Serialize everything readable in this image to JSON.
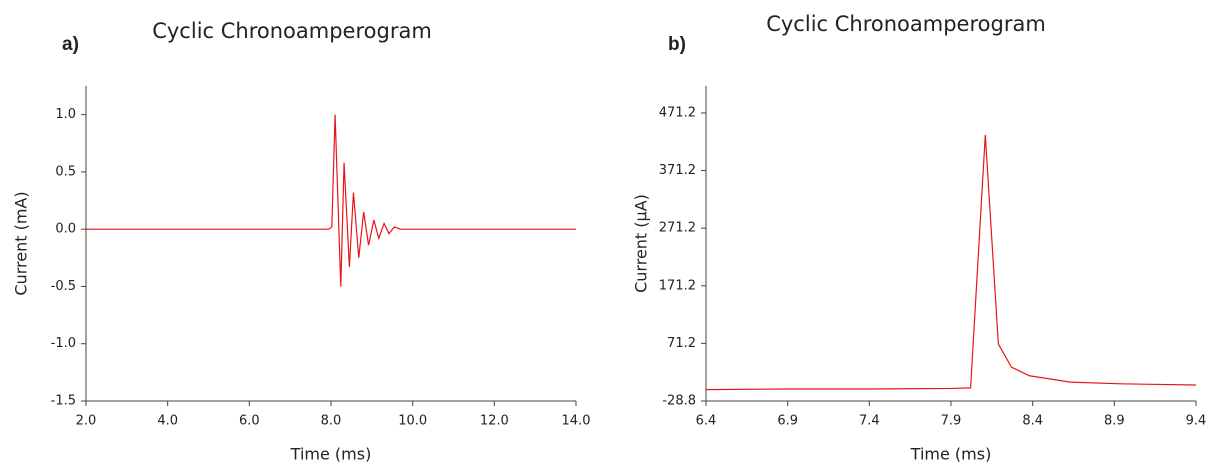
{
  "chart_data": [
    {
      "type": "line",
      "label": "a)",
      "title": "Cyclic Chronoamperogram",
      "xlabel": "Time (ms)",
      "ylabel": "Current (mA)",
      "color": "#e8141a",
      "x": [
        2.0,
        4.0,
        6.0,
        7.95,
        8.02,
        8.1,
        8.24,
        8.32,
        8.45,
        8.55,
        8.68,
        8.8,
        8.92,
        9.05,
        9.17,
        9.3,
        9.42,
        9.55,
        9.7,
        10.0,
        12.0,
        14.0
      ],
      "values": [
        0,
        0,
        0,
        0,
        0.02,
        1.0,
        -0.5,
        0.58,
        -0.33,
        0.32,
        -0.25,
        0.15,
        -0.14,
        0.08,
        -0.08,
        0.05,
        -0.04,
        0.02,
        0,
        0,
        0,
        0
      ],
      "xlim": [
        2.0,
        14.0
      ],
      "xticks": [
        {
          "value": 2,
          "label": "2.0"
        },
        {
          "value": 4,
          "label": "4.0"
        },
        {
          "value": 6,
          "label": "6.0"
        },
        {
          "value": 8,
          "label": "8.0"
        },
        {
          "value": 10,
          "label": "10.0"
        },
        {
          "value": 12,
          "label": "12.0"
        },
        {
          "value": 14,
          "label": "14.0"
        }
      ],
      "ylim": [
        -1.5,
        1.25
      ],
      "yticks": [
        {
          "value": 1,
          "label": "1.0"
        },
        0.5,
        {
          "value": 0,
          "label": "0.0"
        },
        -0.5,
        {
          "value": -1,
          "label": "-1.0"
        },
        -1.5
      ]
    },
    {
      "type": "line",
      "label": "b)",
      "title": "Cyclic Chronoamperogram",
      "xlabel": "Time (ms)",
      "ylabel": "Current (µA)",
      "color": "#e8141a",
      "x": [
        6.4,
        6.9,
        7.4,
        7.9,
        8.02,
        8.11,
        8.19,
        8.27,
        8.38,
        8.63,
        8.94,
        9.4
      ],
      "values": [
        -9,
        -8,
        -8,
        -7,
        -6,
        433,
        70,
        30,
        15,
        4,
        1,
        -1
      ],
      "xlim": [
        6.4,
        9.4
      ],
      "xticks": [
        6.4,
        6.9,
        7.4,
        7.9,
        8.4,
        8.9,
        9.4
      ],
      "ylim": [
        -28.8,
        518
      ],
      "yticks": [
        -28.8,
        71.2,
        171.2,
        271.2,
        371.2,
        471.2
      ]
    }
  ]
}
